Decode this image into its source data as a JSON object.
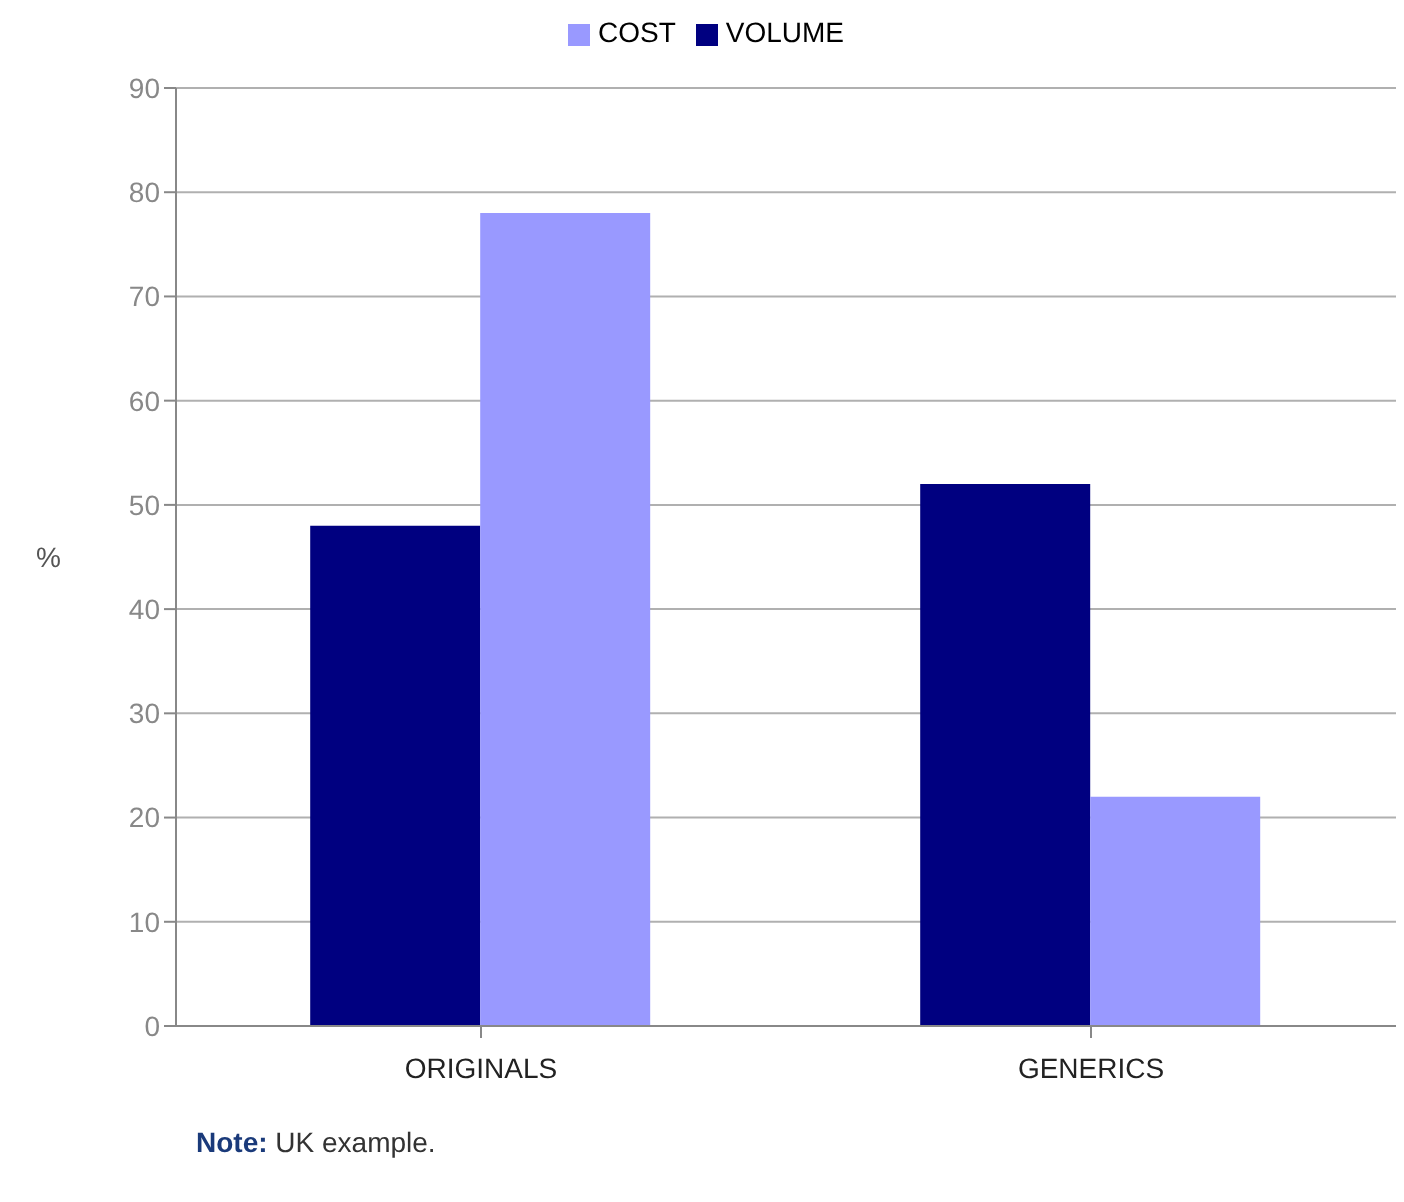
{
  "chart_data": {
    "type": "bar",
    "ylabel": "%",
    "categories": [
      "ORIGINALS",
      "GENERICS"
    ],
    "series": [
      {
        "name": "VOLUME",
        "color": "#000080",
        "values": [
          48,
          52
        ]
      },
      {
        "name": "COST",
        "color": "#9999ff",
        "values": [
          78,
          22
        ]
      }
    ],
    "ylim": [
      0,
      90
    ],
    "yticks": [
      0,
      10,
      20,
      30,
      40,
      50,
      60,
      70,
      80,
      90
    ],
    "grid": "y",
    "legend": "top",
    "annotations": [
      "Note: UK example."
    ]
  }
}
